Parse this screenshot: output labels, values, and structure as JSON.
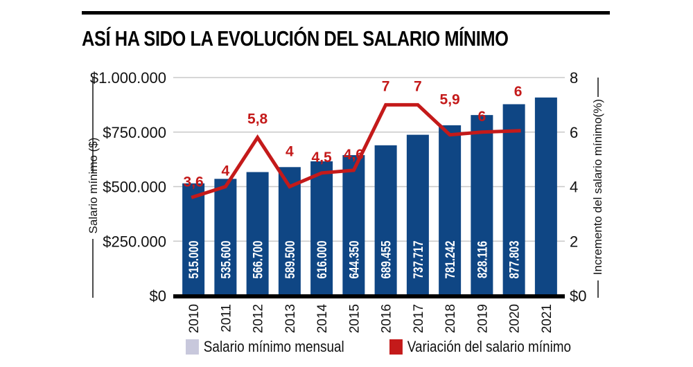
{
  "title": "ASÍ HA SIDO LA EVOLUCIÓN DEL SALARIO MÍNIMO",
  "colors": {
    "bar": "#0f4684",
    "line": "#c41a1a",
    "legend_bar_swatch": "#c8c8dc"
  },
  "chart_data": {
    "type": "bar+line",
    "categories": [
      "2010",
      "2011",
      "2012",
      "2013",
      "2014",
      "2015",
      "2016",
      "2017",
      "2018",
      "2019",
      "2020",
      "2021"
    ],
    "series": [
      {
        "name": "Salario mínimo mensual",
        "type": "bar",
        "axis": "left",
        "values": [
          515000,
          535600,
          566700,
          589500,
          616000,
          644350,
          689455,
          737717,
          781242,
          828116,
          877803,
          908526
        ],
        "labels": [
          "515.000",
          "535.600",
          "566.700",
          "589.500",
          "616.000",
          "644.350",
          "689.455",
          "737.717",
          "781.242",
          "828.116",
          "877.803",
          ""
        ]
      },
      {
        "name": "Variación del salario mínimo",
        "type": "line",
        "axis": "right",
        "values": [
          3.6,
          4,
          5.8,
          4,
          4.5,
          4.6,
          7,
          7,
          5.9,
          6,
          6.05,
          null
        ],
        "labels": [
          "3,6",
          "4",
          "5,8",
          "4",
          "4,5",
          "4,6",
          "7",
          "7",
          "5,9",
          "6",
          "6",
          ""
        ]
      }
    ],
    "ylabel": "Salario mínimo ($)",
    "y2label": "Incremento del salario mínimo(%)",
    "ylim": [
      0,
      1000000
    ],
    "y2lim": [
      0,
      8
    ],
    "yticks": [
      "$0",
      "$250.000",
      "$500.000",
      "$750.000",
      "$1.000.000"
    ],
    "y2ticks": [
      "$0",
      "2",
      "4",
      "6",
      "8"
    ],
    "grid": true,
    "legend_position": "bottom"
  }
}
